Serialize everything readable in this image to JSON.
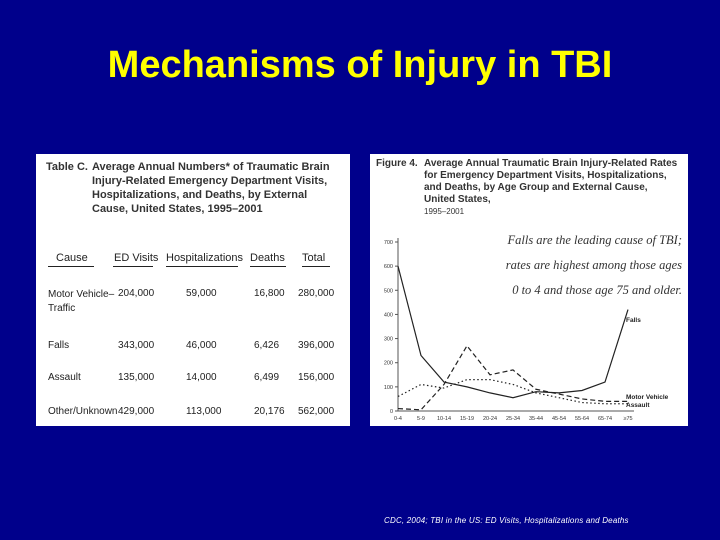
{
  "slide": {
    "title": "Mechanisms of Injury in TBI",
    "source": "CDC, 2004; TBI in the US: ED Visits, Hospitalizations and Deaths",
    "background_color": "#00008b",
    "title_color": "#ffff00"
  },
  "table": {
    "label": "Table C.",
    "caption": "Average Annual Numbers* of Traumatic Brain Injury-Related Emergency Department Visits, Hospitalizations, and Deaths, by External Cause, United States, 1995–2001",
    "headers": [
      "Cause",
      "ED Visits",
      "Hospitalizations",
      "Deaths",
      "Total"
    ],
    "rows": [
      {
        "cause": "Motor Vehicle–Traffic",
        "ed": "204,000",
        "hosp": "59,000",
        "deaths": "16,800",
        "total": "280,000"
      },
      {
        "cause": "Falls",
        "ed": "343,000",
        "hosp": "46,000",
        "deaths": "6,426",
        "total": "396,000"
      },
      {
        "cause": "Assault",
        "ed": "135,000",
        "hosp": "14,000",
        "deaths": "6,499",
        "total": "156,000"
      },
      {
        "cause": "Other/Unknown",
        "ed": "429,000",
        "hosp": "113,000",
        "deaths": "20,176",
        "total": "562,000"
      }
    ]
  },
  "figure": {
    "label": "Figure 4.",
    "caption": "Average Annual Traumatic Brain Injury-Related Rates for Emergency Department Visits, Hospitalizations, and Deaths, by Age Group and External Cause, United States,",
    "years": "1995–2001",
    "note": "Falls are the leading cause of TBI; rates are highest among those ages 0 to 4 and those age 75 and older."
  },
  "chart_data": {
    "type": "line",
    "categories": [
      "0-4",
      "5-9",
      "10-14",
      "15-19",
      "20-24",
      "25-34",
      "35-44",
      "45-54",
      "55-64",
      "65-74",
      "≥75"
    ],
    "ylim": [
      0,
      700
    ],
    "yticks": [
      0,
      100,
      200,
      300,
      400,
      500,
      600,
      700
    ],
    "grid": false,
    "series": [
      {
        "name": "Falls",
        "values": [
          600,
          230,
          120,
          100,
          75,
          55,
          80,
          75,
          85,
          120,
          420
        ],
        "style": "solid",
        "color": "#222222"
      },
      {
        "name": "Motor Vehicle",
        "values": [
          10,
          5,
          110,
          270,
          150,
          170,
          90,
          70,
          50,
          40,
          40
        ],
        "style": "dashed",
        "color": "#222222"
      },
      {
        "name": "Assault",
        "values": [
          60,
          110,
          95,
          130,
          130,
          110,
          75,
          55,
          35,
          30,
          30
        ],
        "style": "dotted",
        "color": "#222222"
      }
    ]
  }
}
